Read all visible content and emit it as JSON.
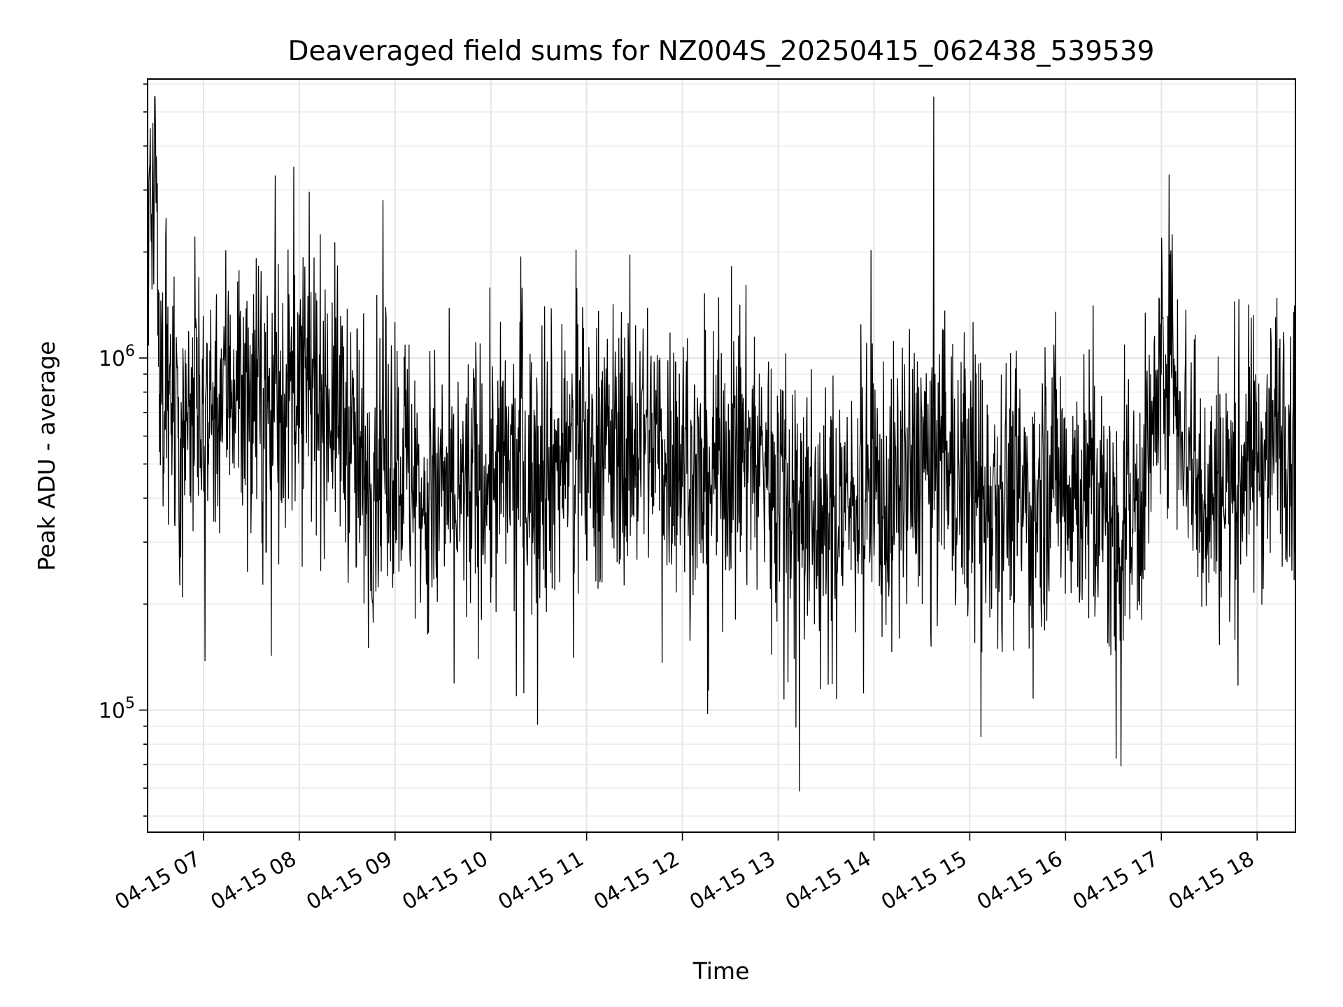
{
  "chart_data": {
    "type": "line",
    "title": "Deaveraged field sums for NZ004S_20250415_062438_539539",
    "xlabel": "Time",
    "ylabel": "Peak ADU - average",
    "x_ticks": [
      "04-15 07",
      "04-15 08",
      "04-15 09",
      "04-15 10",
      "04-15 11",
      "04-15 12",
      "04-15 13",
      "04-15 14",
      "04-15 15",
      "04-15 16",
      "04-15 17",
      "04-15 18"
    ],
    "y_ticks": [
      {
        "value": 100000,
        "label_base": "10",
        "label_exp": "5"
      },
      {
        "value": 1000000,
        "label_base": "10",
        "label_exp": "6"
      }
    ],
    "xlim": [
      "2025-04-15 06:25",
      "2025-04-15 18:24"
    ],
    "ylim": [
      45000,
      6200000
    ],
    "yscale": "log",
    "grid": true,
    "line_color": "#000000",
    "series": [
      {
        "x": [
          "2025-04-15 06:25",
          "2025-04-15 06:30",
          "2025-04-15 06:35",
          "2025-04-15 06:40",
          "2025-04-15 06:45",
          "2025-04-15 06:50",
          "2025-04-15 06:55",
          "2025-04-15 07:00",
          "2025-04-15 07:10",
          "2025-04-15 07:20",
          "2025-04-15 07:30",
          "2025-04-15 07:40",
          "2025-04-15 07:50",
          "2025-04-15 08:00",
          "2025-04-15 08:10",
          "2025-04-15 08:20",
          "2025-04-15 08:30",
          "2025-04-15 08:40",
          "2025-04-15 08:50",
          "2025-04-15 09:00",
          "2025-04-15 09:10",
          "2025-04-15 09:20",
          "2025-04-15 09:30",
          "2025-04-15 09:40",
          "2025-04-15 09:50",
          "2025-04-15 10:00",
          "2025-04-15 10:10",
          "2025-04-15 10:20",
          "2025-04-15 10:30",
          "2025-04-15 10:40",
          "2025-04-15 10:50",
          "2025-04-15 11:00",
          "2025-04-15 11:10",
          "2025-04-15 11:20",
          "2025-04-15 11:30",
          "2025-04-15 11:40",
          "2025-04-15 11:50",
          "2025-04-15 12:00",
          "2025-04-15 12:10",
          "2025-04-15 12:20",
          "2025-04-15 12:30",
          "2025-04-15 12:40",
          "2025-04-15 12:50",
          "2025-04-15 13:00",
          "2025-04-15 13:10",
          "2025-04-15 13:20",
          "2025-04-15 13:30",
          "2025-04-15 13:40",
          "2025-04-15 13:50",
          "2025-04-15 14:00",
          "2025-04-15 14:10",
          "2025-04-15 14:20",
          "2025-04-15 14:30",
          "2025-04-15 14:40",
          "2025-04-15 14:50",
          "2025-04-15 15:00",
          "2025-04-15 15:10",
          "2025-04-15 15:20",
          "2025-04-15 15:30",
          "2025-04-15 15:40",
          "2025-04-15 15:50",
          "2025-04-15 16:00",
          "2025-04-15 16:10",
          "2025-04-15 16:20",
          "2025-04-15 16:30",
          "2025-04-15 16:40",
          "2025-04-15 16:50",
          "2025-04-15 17:00",
          "2025-04-15 17:05",
          "2025-04-15 17:10",
          "2025-04-15 17:20",
          "2025-04-15 17:30",
          "2025-04-15 17:40",
          "2025-04-15 17:50",
          "2025-04-15 18:00",
          "2025-04-15 18:10",
          "2025-04-15 18:15",
          "2025-04-15 18:24"
        ],
        "y": [
          2600000,
          3800000,
          650000,
          900000,
          480000,
          800000,
          700000,
          650000,
          800000,
          900000,
          750000,
          700000,
          800000,
          750000,
          820000,
          780000,
          650000,
          420000,
          520000,
          560000,
          480000,
          360000,
          420000,
          380000,
          460000,
          440000,
          480000,
          470000,
          460000,
          500000,
          560000,
          560000,
          560000,
          540000,
          580000,
          600000,
          540000,
          540000,
          420000,
          480000,
          520000,
          560000,
          520000,
          480000,
          420000,
          360000,
          300000,
          380000,
          400000,
          420000,
          380000,
          440000,
          520000,
          540000,
          460000,
          420000,
          420000,
          430000,
          410000,
          360000,
          500000,
          460000,
          420000,
          380000,
          320000,
          360000,
          440000,
          900000,
          1200000,
          800000,
          500000,
          400000,
          420000,
          500000,
          520000,
          600000,
          700000,
          650000
        ]
      }
    ]
  }
}
